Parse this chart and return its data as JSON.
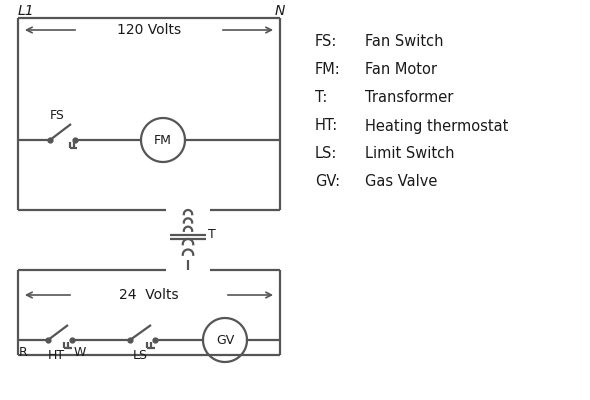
{
  "legend": [
    [
      "FS:",
      "Fan Switch"
    ],
    [
      "FM:",
      "Fan Motor"
    ],
    [
      "T:",
      "Transformer"
    ],
    [
      "HT:",
      "Heating thermostat"
    ],
    [
      "LS:",
      "Limit Switch"
    ],
    [
      "GV:",
      "Gas Valve"
    ]
  ],
  "line_color": "#555555",
  "text_color": "#1a1a1a",
  "bg_color": "#ffffff",
  "lw": 1.6
}
